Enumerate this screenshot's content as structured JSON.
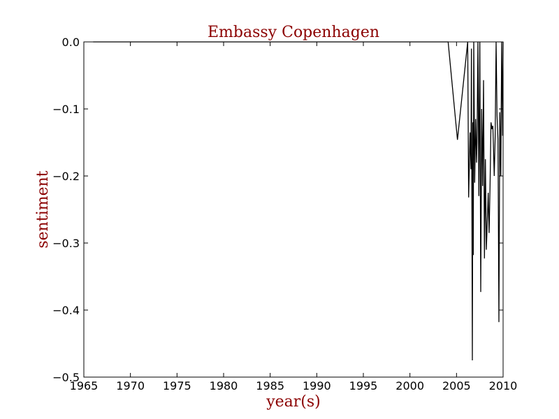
{
  "chart_data": {
    "type": "line",
    "title": "Embassy Copenhagen",
    "xlabel": "year(s)",
    "ylabel": "sentiment",
    "xlim": [
      1965,
      2010
    ],
    "ylim": [
      -0.5,
      0.0
    ],
    "xticks": [
      1965,
      1970,
      1975,
      1980,
      1985,
      1990,
      1995,
      2000,
      2005,
      2010
    ],
    "yticks": [
      0.0,
      -0.1,
      -0.2,
      -0.3,
      -0.4,
      -0.5
    ],
    "xtick_labels": [
      "1965",
      "1970",
      "1975",
      "1980",
      "1985",
      "1990",
      "1995",
      "2000",
      "2005",
      "2010"
    ],
    "ytick_labels": [
      "0.0",
      "−0.1",
      "−0.2",
      "−0.3",
      "−0.4",
      "−0.5"
    ],
    "grid": false,
    "series": [
      {
        "color": "#000000",
        "x": [
          1966.0,
          2004.1,
          2005.1,
          2006.2,
          2006.3,
          2006.45,
          2006.55,
          2006.6,
          2006.7,
          2006.75,
          2006.8,
          2006.85,
          2006.95,
          2007.05,
          2007.15,
          2007.2,
          2007.3,
          2007.4,
          2007.5,
          2007.6,
          2007.7,
          2007.75,
          2007.8,
          2007.9,
          2008.0,
          2008.1,
          2008.2,
          2008.3,
          2008.4,
          2008.5,
          2008.6,
          2008.7,
          2008.8,
          2008.9,
          2009.05,
          2009.15,
          2009.25,
          2009.35,
          2009.45,
          2009.55,
          2009.65,
          2009.75,
          2009.85,
          2009.95,
          2010.0
        ],
        "y": [
          0.0,
          0.0,
          -0.146,
          0.0,
          -0.232,
          -0.135,
          -0.19,
          -0.01,
          -0.475,
          -0.12,
          -0.318,
          0.0,
          -0.21,
          -0.115,
          -0.18,
          -0.15,
          0.0,
          -0.23,
          0.0,
          -0.373,
          -0.1,
          -0.15,
          -0.215,
          -0.057,
          -0.323,
          -0.175,
          -0.31,
          -0.27,
          -0.225,
          -0.285,
          -0.215,
          -0.12,
          -0.13,
          -0.125,
          -0.2,
          -0.14,
          0.0,
          -0.11,
          -0.145,
          -0.418,
          -0.105,
          -0.2,
          0.0,
          -0.14,
          0.0
        ]
      }
    ]
  },
  "style": {
    "text_accent_color": "#8b0000",
    "line_color": "#000000",
    "axes_color": "#000000",
    "background": "#ffffff"
  }
}
